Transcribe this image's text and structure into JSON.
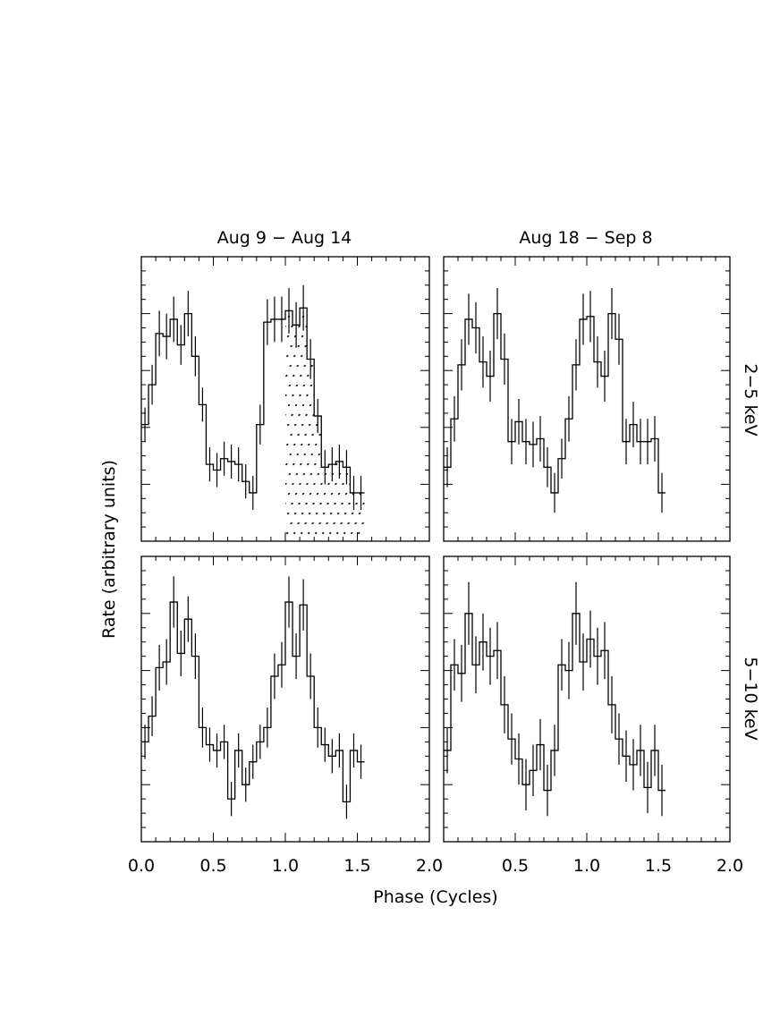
{
  "chart_data": {
    "type": "step",
    "xlabel": "Phase (Cycles)",
    "ylabel": "Rate (arbitrary units)",
    "xlim": [
      0,
      2
    ],
    "ylim": [
      0,
      10
    ],
    "xticks": [
      0.0,
      0.5,
      1.0,
      1.5,
      2.0
    ],
    "xtick_labels": [
      "0.0",
      "0.5",
      "1.0",
      "1.5",
      "2.0"
    ],
    "column_titles": [
      "Aug 9 − Aug 14",
      "Aug 18 − Sep 8"
    ],
    "row_labels": [
      "2−5 keV",
      "5−10 keV"
    ],
    "bin_width": 0.05,
    "shaded_region": {
      "panel": "top-left",
      "x_range": [
        1.0,
        1.55
      ],
      "pattern": "dots"
    },
    "panels": [
      {
        "id": "top-left",
        "row": 0,
        "col": 0,
        "values": [
          4.1,
          5.5,
          7.3,
          7.2,
          7.8,
          6.9,
          8.0,
          6.5,
          4.8,
          2.7,
          2.5,
          2.9,
          2.8,
          2.7,
          2.1,
          1.7,
          4.1,
          7.7,
          7.8,
          7.8,
          8.1,
          7.6,
          8.2,
          6.4,
          4.4,
          2.6,
          2.7,
          2.8,
          2.6,
          1.7,
          1.7
        ],
        "errors": [
          0.6,
          0.7,
          0.8,
          0.8,
          0.8,
          0.7,
          0.8,
          0.7,
          0.6,
          0.6,
          0.6,
          0.6,
          0.6,
          0.6,
          0.6,
          0.6,
          0.7,
          0.8,
          0.8,
          0.8,
          0.8,
          0.8,
          0.8,
          0.7,
          0.6,
          0.6,
          0.6,
          0.6,
          0.6,
          0.6,
          0.6
        ]
      },
      {
        "id": "top-right",
        "row": 0,
        "col": 1,
        "values": [
          2.6,
          4.3,
          6.2,
          7.8,
          7.5,
          6.3,
          5.8,
          8.0,
          6.4,
          3.5,
          4.2,
          3.5,
          3.4,
          3.6,
          2.6,
          1.7,
          2.9,
          4.3,
          6.2,
          7.8,
          7.9,
          6.3,
          5.8,
          8.0,
          7.1,
          3.5,
          4.1,
          3.5,
          3.5,
          3.6,
          1.7
        ],
        "errors": [
          0.7,
          0.8,
          0.9,
          0.9,
          0.9,
          0.9,
          0.9,
          0.9,
          0.9,
          0.8,
          0.8,
          0.8,
          0.8,
          0.8,
          0.7,
          0.7,
          0.7,
          0.8,
          0.9,
          0.9,
          0.9,
          0.9,
          0.9,
          0.9,
          0.9,
          0.8,
          0.8,
          0.8,
          0.8,
          0.8,
          0.7
        ]
      },
      {
        "id": "bottom-left",
        "row": 1,
        "col": 0,
        "values": [
          3.5,
          4.4,
          6.1,
          6.3,
          8.4,
          6.6,
          7.8,
          6.5,
          4.0,
          3.4,
          3.2,
          3.5,
          1.5,
          3.2,
          2.0,
          2.8,
          3.5,
          4.0,
          5.8,
          6.2,
          8.4,
          6.5,
          8.3,
          5.8,
          4.0,
          3.4,
          3.0,
          3.2,
          1.4,
          3.2,
          2.8
        ],
        "errors": [
          0.6,
          0.7,
          0.8,
          0.8,
          0.9,
          0.8,
          0.8,
          0.8,
          0.7,
          0.6,
          0.6,
          0.6,
          0.6,
          0.6,
          0.6,
          0.6,
          0.6,
          0.7,
          0.8,
          0.8,
          0.9,
          0.8,
          0.9,
          0.8,
          0.7,
          0.6,
          0.6,
          0.6,
          0.6,
          0.6,
          0.6
        ]
      },
      {
        "id": "bottom-right",
        "row": 1,
        "col": 1,
        "values": [
          3.2,
          6.2,
          5.9,
          8.0,
          6.2,
          7.0,
          6.5,
          6.7,
          4.8,
          3.6,
          2.9,
          2.0,
          2.5,
          3.4,
          1.8,
          3.2,
          6.2,
          6.0,
          8.0,
          6.3,
          7.1,
          6.5,
          6.7,
          4.8,
          3.6,
          3.0,
          2.7,
          3.2,
          1.9,
          3.2,
          1.8
        ],
        "errors": [
          0.8,
          0.9,
          1.0,
          1.1,
          1.0,
          1.0,
          1.0,
          1.0,
          1.0,
          0.9,
          0.9,
          0.9,
          0.9,
          0.9,
          0.9,
          0.9,
          0.9,
          1.0,
          1.1,
          1.0,
          1.0,
          1.0,
          1.0,
          1.0,
          0.9,
          0.9,
          0.9,
          0.9,
          0.9,
          0.9,
          0.9
        ]
      }
    ]
  }
}
